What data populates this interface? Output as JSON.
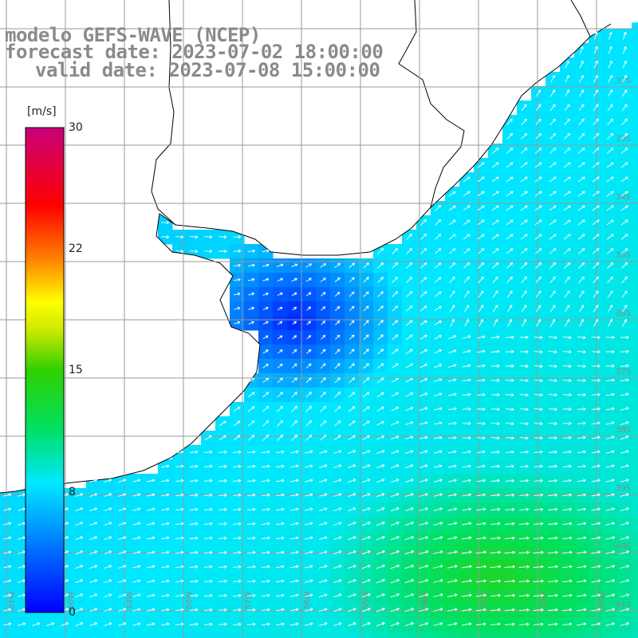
{
  "title": {
    "line1": "modelo GEFS-WAVE (NCEP)",
    "line2": "forecast date: 2023-07-02 18:00:00",
    "line3": "valid date: 2023-07-08 15:00:00"
  },
  "colorbar": {
    "units": "[m/s]",
    "ticks": [
      "30",
      "22",
      "15",
      "8",
      "0"
    ],
    "tick_values": [
      30,
      22,
      15,
      8,
      0
    ],
    "min": 0,
    "max": 30
  },
  "map": {
    "lat_labels": [
      "32S",
      "33S",
      "34S",
      "35S",
      "36S",
      "37S",
      "38S",
      "39S",
      "40S",
      "41S"
    ],
    "lon_labels": [
      "61W",
      "60W",
      "59W",
      "58W",
      "57W",
      "56W",
      "55W",
      "54W",
      "53W",
      "52W",
      "51W"
    ],
    "land_color": "#ffffff",
    "grid_color": "#999999",
    "coast_color": "#000000",
    "arrow_color": "#ffffff"
  },
  "field": {
    "variable": "wind speed",
    "units": "m/s",
    "description_level": "approximate",
    "low_region_speed": 3,
    "mid_region_speed": 8,
    "high_region_speed": 12
  }
}
